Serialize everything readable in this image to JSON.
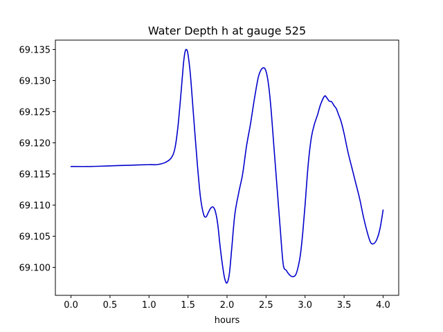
{
  "chart_data": {
    "type": "line",
    "title": "Water Depth h at gauge 525",
    "xlabel": "hours",
    "ylabel": "",
    "xlim": [
      -0.2,
      4.2
    ],
    "ylim": [
      69.0955,
      69.1365
    ],
    "xticks": [
      0.0,
      0.5,
      1.0,
      1.5,
      2.0,
      2.5,
      3.0,
      3.5,
      4.0
    ],
    "xtick_labels": [
      "0.0",
      "0.5",
      "1.0",
      "1.5",
      "2.0",
      "2.5",
      "3.0",
      "3.5",
      "4.0"
    ],
    "yticks": [
      69.1,
      69.105,
      69.11,
      69.115,
      69.12,
      69.125,
      69.13,
      69.135
    ],
    "ytick_labels": [
      "69.100",
      "69.105",
      "69.110",
      "69.115",
      "69.120",
      "69.125",
      "69.130",
      "69.135"
    ],
    "grid": false,
    "series": [
      {
        "color": "#0000cc",
        "x": [
          0.0,
          0.25,
          0.5,
          0.75,
          1.0,
          1.1,
          1.2,
          1.28,
          1.33,
          1.37,
          1.41,
          1.44,
          1.46,
          1.48,
          1.5,
          1.53,
          1.57,
          1.62,
          1.66,
          1.7,
          1.73,
          1.76,
          1.79,
          1.82,
          1.85,
          1.88,
          1.91,
          1.94,
          1.97,
          2.0,
          2.03,
          2.06,
          2.1,
          2.15,
          2.2,
          2.25,
          2.3,
          2.35,
          2.4,
          2.44,
          2.48,
          2.51,
          2.54,
          2.57,
          2.6,
          2.64,
          2.68,
          2.72,
          2.76,
          2.8,
          2.84,
          2.88,
          2.91,
          2.94,
          2.97,
          3.0,
          3.04,
          3.08,
          3.12,
          3.16,
          3.2,
          3.25,
          3.28,
          3.31,
          3.34,
          3.37,
          3.4,
          3.43,
          3.46,
          3.5,
          3.55,
          3.6,
          3.65,
          3.7,
          3.75,
          3.8,
          3.84,
          3.88,
          3.92,
          3.96,
          4.0
        ],
        "y": [
          69.1162,
          69.1162,
          69.1163,
          69.1164,
          69.1165,
          69.1165,
          69.1168,
          69.1175,
          69.119,
          69.1225,
          69.128,
          69.1325,
          69.1345,
          69.135,
          69.1342,
          69.131,
          69.1245,
          69.1165,
          69.1112,
          69.1085,
          69.1081,
          69.1088,
          69.1095,
          69.1097,
          69.109,
          69.107,
          69.1035,
          69.1005,
          69.0982,
          69.0975,
          69.099,
          69.103,
          69.1085,
          69.112,
          69.115,
          69.1195,
          69.123,
          69.127,
          69.1305,
          69.1318,
          69.132,
          69.131,
          69.1285,
          69.1245,
          69.1195,
          69.113,
          69.1065,
          69.1005,
          69.0995,
          69.0988,
          69.0985,
          69.0988,
          69.1,
          69.102,
          69.1055,
          69.11,
          69.1165,
          69.1208,
          69.123,
          69.1245,
          69.1262,
          69.1275,
          69.1272,
          69.1267,
          69.1266,
          69.126,
          69.1255,
          69.1245,
          69.1235,
          69.1215,
          69.1185,
          69.116,
          69.1135,
          69.111,
          69.108,
          69.1055,
          69.104,
          69.1038,
          69.1045,
          69.1062,
          69.1092
        ]
      }
    ]
  }
}
